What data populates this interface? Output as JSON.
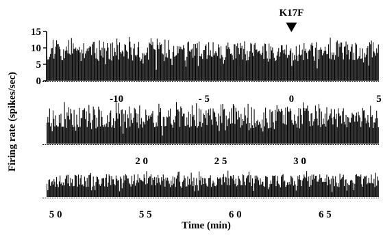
{
  "chart_data": {
    "type": "bar",
    "ylabel": "Firing  rate (spikes/sec)",
    "xlabel": "Time (min)",
    "annotation": {
      "label": "K17F",
      "x": 0
    },
    "yticks": [
      "15",
      "10",
      "5",
      "0"
    ],
    "ylim": [
      0,
      15
    ],
    "panels": [
      {
        "xrange": [
          -14,
          5
        ],
        "xticks": [
          {
            "x": -10,
            "label": "-10"
          },
          {
            "x": -5,
            "label": "- 5"
          },
          {
            "x": 0,
            "label": "0"
          },
          {
            "x": 5,
            "label": "5"
          }
        ],
        "level": 9.0,
        "amplitude": 3.0,
        "bins": 380,
        "seed": 11
      },
      {
        "xrange": [
          14,
          35
        ],
        "xticks": [
          {
            "x": 20,
            "label": "2 0"
          },
          {
            "x": 25,
            "label": "2 5"
          },
          {
            "x": 30,
            "label": "3 0"
          }
        ],
        "level": 8.5,
        "amplitude": 3.5,
        "bins": 380,
        "seed": 23
      },
      {
        "xrange": [
          49.5,
          68
        ],
        "xticks": [
          {
            "x": 50,
            "label": "5 0"
          },
          {
            "x": 55,
            "label": "5 5"
          },
          {
            "x": 60,
            "label": "6 0"
          },
          {
            "x": 65,
            "label": "6 5"
          }
        ],
        "level": 7.5,
        "amplitude": 3.0,
        "bins": 380,
        "seed": 37
      }
    ]
  }
}
